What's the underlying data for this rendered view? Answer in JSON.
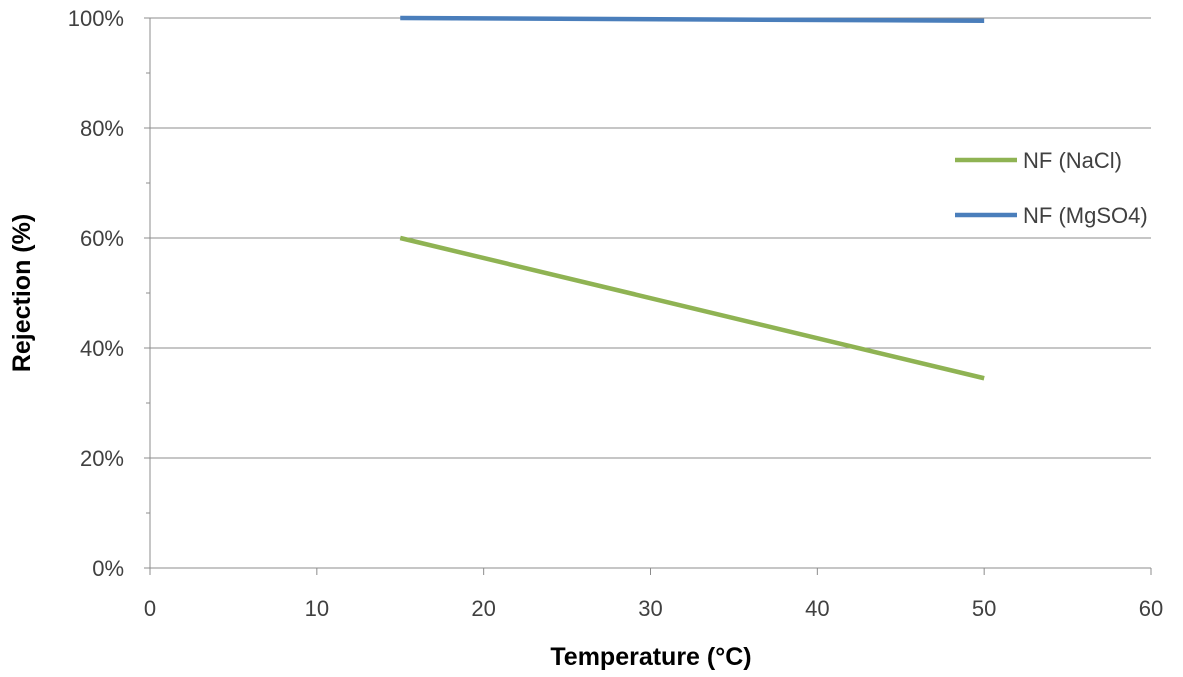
{
  "chart_data": {
    "type": "line",
    "title": "",
    "xlabel": "Temperature (°C)",
    "ylabel": "Rejection (%)",
    "xlim": [
      0,
      60
    ],
    "ylim": [
      0,
      1
    ],
    "x_ticks": [
      0,
      10,
      20,
      30,
      40,
      50,
      60
    ],
    "x_tick_labels": [
      "0",
      "10",
      "20",
      "30",
      "40",
      "50",
      "60"
    ],
    "y_ticks": [
      0,
      0.2,
      0.4,
      0.6,
      0.8,
      1.0
    ],
    "y_tick_labels": [
      "0%",
      "20%",
      "40%",
      "60%",
      "80%",
      "100%"
    ],
    "grid": "horizontal",
    "legend_position": "right",
    "series": [
      {
        "name": "NF (NaCl)",
        "color": "#8fb353",
        "x": [
          15,
          50
        ],
        "y": [
          0.6,
          0.345
        ]
      },
      {
        "name": "NF (MgSO4)",
        "color": "#4a7ebb",
        "x": [
          15,
          50
        ],
        "y": [
          1.0,
          0.995
        ]
      }
    ]
  }
}
